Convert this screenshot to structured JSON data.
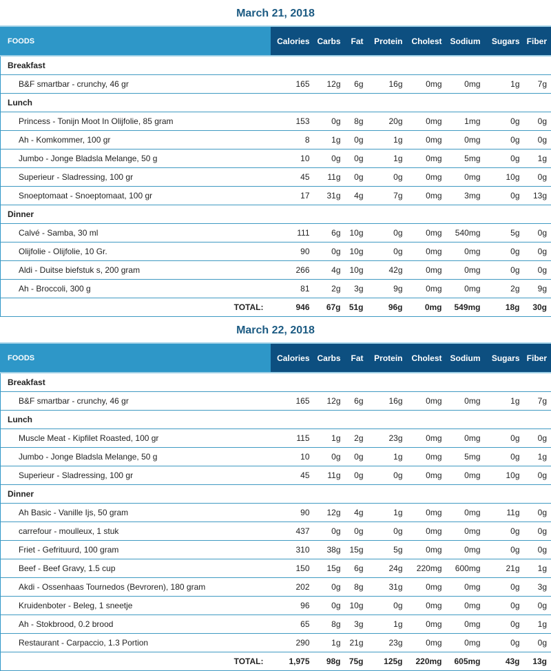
{
  "columns": [
    "FOODS",
    "Calories",
    "Carbs",
    "Fat",
    "Protein",
    "Cholest",
    "Sodium",
    "Sugars",
    "Fiber"
  ],
  "total_label": "TOTAL:",
  "days": [
    {
      "title": "March 21, 2018",
      "meals": [
        {
          "name": "Breakfast",
          "foods": [
            [
              "B&F smartbar - crunchy, 46 gr",
              "165",
              "12g",
              "6g",
              "16g",
              "0mg",
              "0mg",
              "1g",
              "7g"
            ]
          ]
        },
        {
          "name": "Lunch",
          "foods": [
            [
              "Princess - Tonijn Moot In Olijfolie, 85 gram",
              "153",
              "0g",
              "8g",
              "20g",
              "0mg",
              "1mg",
              "0g",
              "0g"
            ],
            [
              "Ah - Komkommer, 100 gr",
              "8",
              "1g",
              "0g",
              "1g",
              "0mg",
              "0mg",
              "0g",
              "0g"
            ],
            [
              "Jumbo - Jonge Bladsla Melange, 50 g",
              "10",
              "0g",
              "0g",
              "1g",
              "0mg",
              "5mg",
              "0g",
              "1g"
            ],
            [
              "Superieur - Sladressing, 100 gr",
              "45",
              "11g",
              "0g",
              "0g",
              "0mg",
              "0mg",
              "10g",
              "0g"
            ],
            [
              "Snoeptomaat - Snoeptomaat, 100 gr",
              "17",
              "31g",
              "4g",
              "7g",
              "0mg",
              "3mg",
              "0g",
              "13g"
            ]
          ]
        },
        {
          "name": "Dinner",
          "foods": [
            [
              "Calvé - Samba, 30 ml",
              "111",
              "6g",
              "10g",
              "0g",
              "0mg",
              "540mg",
              "5g",
              "0g"
            ],
            [
              "Olijfolie - Olijfolie, 10 Gr.",
              "90",
              "0g",
              "10g",
              "0g",
              "0mg",
              "0mg",
              "0g",
              "0g"
            ],
            [
              "Aldi - Duitse biefstuk s, 200 gram",
              "266",
              "4g",
              "10g",
              "42g",
              "0mg",
              "0mg",
              "0g",
              "0g"
            ],
            [
              "Ah - Broccoli, 300 g",
              "81",
              "2g",
              "3g",
              "9g",
              "0mg",
              "0mg",
              "2g",
              "9g"
            ]
          ]
        }
      ],
      "totals": [
        "946",
        "67g",
        "51g",
        "96g",
        "0mg",
        "549mg",
        "18g",
        "30g"
      ]
    },
    {
      "title": "March 22, 2018",
      "meals": [
        {
          "name": "Breakfast",
          "foods": [
            [
              "B&F smartbar - crunchy, 46 gr",
              "165",
              "12g",
              "6g",
              "16g",
              "0mg",
              "0mg",
              "1g",
              "7g"
            ]
          ]
        },
        {
          "name": "Lunch",
          "foods": [
            [
              "Muscle Meat - Kipfilet Roasted, 100 gr",
              "115",
              "1g",
              "2g",
              "23g",
              "0mg",
              "0mg",
              "0g",
              "0g"
            ],
            [
              "Jumbo - Jonge Bladsla Melange, 50 g",
              "10",
              "0g",
              "0g",
              "1g",
              "0mg",
              "5mg",
              "0g",
              "1g"
            ],
            [
              "Superieur - Sladressing, 100 gr",
              "45",
              "11g",
              "0g",
              "0g",
              "0mg",
              "0mg",
              "10g",
              "0g"
            ]
          ]
        },
        {
          "name": "Dinner",
          "foods": [
            [
              "Ah Basic - Vanille Ijs, 50 gram",
              "90",
              "12g",
              "4g",
              "1g",
              "0mg",
              "0mg",
              "11g",
              "0g"
            ],
            [
              "carrefour - moulleux, 1 stuk",
              "437",
              "0g",
              "0g",
              "0g",
              "0mg",
              "0mg",
              "0g",
              "0g"
            ],
            [
              "Friet - Gefrituurd, 100 gram",
              "310",
              "38g",
              "15g",
              "5g",
              "0mg",
              "0mg",
              "0g",
              "0g"
            ],
            [
              "Beef - Beef Gravy, 1.5 cup",
              "150",
              "15g",
              "6g",
              "24g",
              "220mg",
              "600mg",
              "21g",
              "1g"
            ],
            [
              "Akdi - Ossenhaas Tournedos (Bevroren), 180 gram",
              "202",
              "0g",
              "8g",
              "31g",
              "0mg",
              "0mg",
              "0g",
              "3g"
            ],
            [
              "Kruidenboter - Beleg, 1 sneetje",
              "96",
              "0g",
              "10g",
              "0g",
              "0mg",
              "0mg",
              "0g",
              "0g"
            ],
            [
              "Ah - Stokbrood, 0.2 brood",
              "65",
              "8g",
              "3g",
              "1g",
              "0mg",
              "0mg",
              "0g",
              "1g"
            ],
            [
              "Restaurant - Carpaccio, 1.3 Portion",
              "290",
              "1g",
              "21g",
              "23g",
              "0mg",
              "0mg",
              "0g",
              "0g"
            ]
          ]
        }
      ],
      "totals": [
        "1,975",
        "98g",
        "75g",
        "125g",
        "220mg",
        "605mg",
        "43g",
        "13g"
      ]
    }
  ]
}
